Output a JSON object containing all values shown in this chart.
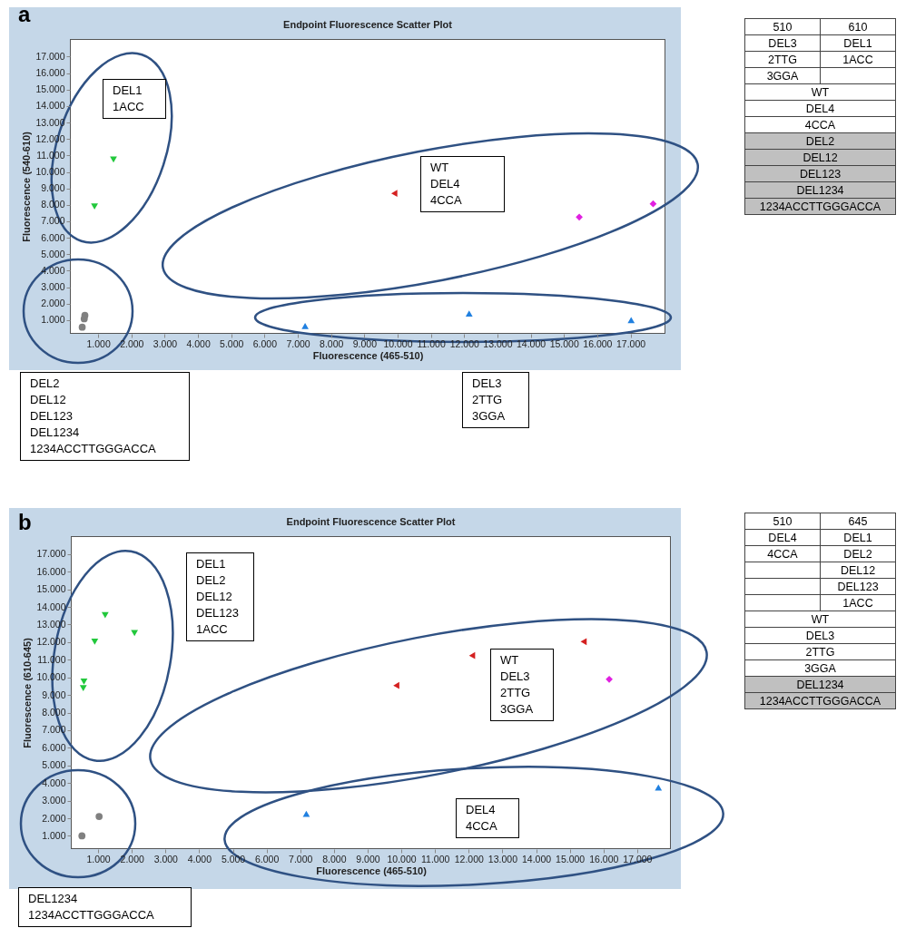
{
  "chart_data": [
    {
      "type": "scatter",
      "title": "Endpoint Fluorescence Scatter Plot",
      "xlabel": "Fluorescence (465-510)",
      "ylabel": "Fluorescence (540-610)",
      "xlim": [
        150,
        18050
      ],
      "ylim": [
        170,
        18070
      ],
      "xticks": [
        {
          "value": 1000,
          "label": "1.000"
        },
        {
          "value": 2000,
          "label": "2.000"
        },
        {
          "value": 3000,
          "label": "3.000"
        },
        {
          "value": 4000,
          "label": "4.000"
        },
        {
          "value": 5000,
          "label": "5.000"
        },
        {
          "value": 6000,
          "label": "6.000"
        },
        {
          "value": 7000,
          "label": "7.000"
        },
        {
          "value": 8000,
          "label": "8.000"
        },
        {
          "value": 9000,
          "label": "9.000"
        },
        {
          "value": 10000,
          "label": "10.000"
        },
        {
          "value": 11000,
          "label": "11.000"
        },
        {
          "value": 12000,
          "label": "12.000"
        },
        {
          "value": 13000,
          "label": "13.000"
        },
        {
          "value": 14000,
          "label": "14.000"
        },
        {
          "value": 15000,
          "label": "15.000"
        },
        {
          "value": 16000,
          "label": "16.000"
        },
        {
          "value": 17000,
          "label": "17.000"
        }
      ],
      "yticks": [
        {
          "value": 1000,
          "label": "1.000"
        },
        {
          "value": 2000,
          "label": "2.000"
        },
        {
          "value": 3000,
          "label": "3.000"
        },
        {
          "value": 4000,
          "label": "4.000"
        },
        {
          "value": 5000,
          "label": "5.000"
        },
        {
          "value": 6000,
          "label": "6.000"
        },
        {
          "value": 7000,
          "label": "7.000"
        },
        {
          "value": 8000,
          "label": "8.000"
        },
        {
          "value": 9000,
          "label": "9.000"
        },
        {
          "value": 10000,
          "label": "10.000"
        },
        {
          "value": 11000,
          "label": "11.000"
        },
        {
          "value": 12000,
          "label": "12.000"
        },
        {
          "value": 13000,
          "label": "13.000"
        },
        {
          "value": 14000,
          "label": "14.000"
        },
        {
          "value": 15000,
          "label": "15.000"
        },
        {
          "value": 16000,
          "label": "16.000"
        },
        {
          "value": 17000,
          "label": "17.000"
        }
      ],
      "series": [
        {
          "color": "#22c83c",
          "marker": "triangle-down",
          "x": [
            1460,
            890
          ],
          "values": [
            10750,
            7900
          ]
        },
        {
          "color": "#d42020",
          "marker": "triangle-left",
          "x": [
            9900
          ],
          "values": [
            8700
          ]
        },
        {
          "color": "#e020e0",
          "marker": "diamond",
          "x": [
            15460,
            17680
          ],
          "values": [
            7260,
            8060
          ]
        },
        {
          "color": "#2080e0",
          "marker": "triangle-up",
          "x": [
            7220,
            12150,
            17020
          ],
          "values": [
            650,
            1400,
            1000
          ]
        },
        {
          "color": "#808080",
          "marker": "circle",
          "x": [
            520,
            580,
            600
          ],
          "values": [
            570,
            1080,
            1290
          ]
        }
      ],
      "annotations": [
        "a",
        "DEL1\n1ACC",
        "WT\nDEL4\n4CCA",
        "DEL2\nDEL12\nDEL123\nDEL1234\n1234ACCTTGGGACCA",
        "DEL3\n2TTG\n3GGA",
        "510",
        "610",
        "DEL3",
        "DEL1",
        "2TTG",
        "1ACC",
        "3GGA",
        "WT",
        "DEL4",
        "4CCA",
        "DEL2",
        "DEL12",
        "DEL123",
        "DEL1234",
        "1234ACCTTGGGACCA"
      ]
    },
    {
      "type": "scatter",
      "title": "Endpoint Fluorescence Scatter Plot",
      "xlabel": "Fluorescence (465-510)",
      "ylabel": "Fluorescence (610-645)",
      "xlim": [
        190,
        18000
      ],
      "ylim": [
        250,
        18020
      ],
      "xticks": [
        {
          "value": 1000,
          "label": "1.000"
        },
        {
          "value": 2000,
          "label": "2.000"
        },
        {
          "value": 3000,
          "label": "3.000"
        },
        {
          "value": 4000,
          "label": "4.000"
        },
        {
          "value": 5000,
          "label": "5.000"
        },
        {
          "value": 6000,
          "label": "6.000"
        },
        {
          "value": 7000,
          "label": "7.000"
        },
        {
          "value": 8000,
          "label": "8.000"
        },
        {
          "value": 9000,
          "label": "9.000"
        },
        {
          "value": 10000,
          "label": "10.000"
        },
        {
          "value": 11000,
          "label": "11.000"
        },
        {
          "value": 12000,
          "label": "12.000"
        },
        {
          "value": 13000,
          "label": "13.000"
        },
        {
          "value": 14000,
          "label": "14.000"
        },
        {
          "value": 15000,
          "label": "15.000"
        },
        {
          "value": 16000,
          "label": "16.000"
        },
        {
          "value": 17000,
          "label": "17.000"
        }
      ],
      "yticks": [
        {
          "value": 1000,
          "label": "1.000"
        },
        {
          "value": 2000,
          "label": "2.000"
        },
        {
          "value": 3000,
          "label": "3.000"
        },
        {
          "value": 4000,
          "label": "4.000"
        },
        {
          "value": 5000,
          "label": "5.000"
        },
        {
          "value": 6000,
          "label": "6.000"
        },
        {
          "value": 7000,
          "label": "7.000"
        },
        {
          "value": 8000,
          "label": "8.000"
        },
        {
          "value": 9000,
          "label": "9.000"
        },
        {
          "value": 10000,
          "label": "10.000"
        },
        {
          "value": 11000,
          "label": "11.000"
        },
        {
          "value": 12000,
          "label": "12.000"
        },
        {
          "value": 13000,
          "label": "13.000"
        },
        {
          "value": 14000,
          "label": "14.000"
        },
        {
          "value": 15000,
          "label": "15.000"
        },
        {
          "value": 16000,
          "label": "16.000"
        },
        {
          "value": 17000,
          "label": "17.000"
        }
      ],
      "series": [
        {
          "color": "#22c83c",
          "marker": "triangle-down",
          "x": [
            1210,
            2080,
            900,
            580,
            560
          ],
          "values": [
            13530,
            12510,
            12030,
            9760,
            9390
          ]
        },
        {
          "color": "#d42020",
          "marker": "triangle-left",
          "x": [
            9850,
            12100,
            15410
          ],
          "values": [
            9540,
            11240,
            12030
          ]
        },
        {
          "color": "#e020e0",
          "marker": "diamond",
          "x": [
            16170
          ],
          "values": [
            9890
          ]
        },
        {
          "color": "#2080e0",
          "marker": "triangle-up",
          "x": [
            7180,
            17630
          ],
          "values": [
            2250,
            3750
          ]
        },
        {
          "color": "#808080",
          "marker": "circle",
          "x": [
            520,
            1030
          ],
          "values": [
            1000,
            2100
          ]
        }
      ],
      "annotations": [
        "b",
        "DEL1\nDEL2\nDEL12\nDEL123\n1ACC",
        "WT\nDEL3\n2TTG\n3GGA",
        "DEL4\n4CCA",
        "DEL1234\n1234ACCTTGGGACCA",
        "510",
        "645",
        "DEL4",
        "DEL1",
        "4CCA",
        "DEL2",
        "DEL12",
        "DEL123",
        "1ACC",
        "WT",
        "DEL3",
        "2TTG",
        "3GGA",
        "DEL1234",
        "1234ACCTTGGGACCA"
      ]
    }
  ]
}
